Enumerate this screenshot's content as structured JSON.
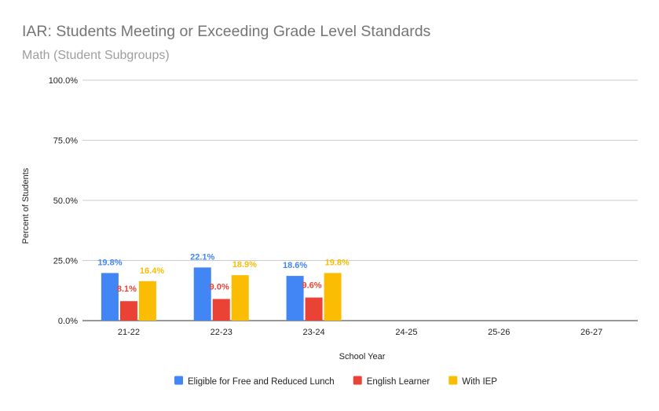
{
  "chart_data": {
    "type": "bar",
    "title": "IAR: Students Meeting or Exceeding Grade Level Standards",
    "subtitle": "Math (Student Subgroups)",
    "xlabel": "School Year",
    "ylabel": "Percent of Students",
    "categories": [
      "21-22",
      "22-23",
      "23-24",
      "24-25",
      "25-26",
      "26-27"
    ],
    "ylim": [
      0,
      100
    ],
    "yticks": [
      0,
      25,
      50,
      75,
      100
    ],
    "ytick_labels": [
      "0.0%",
      "25.0%",
      "50.0%",
      "75.0%",
      "100.0%"
    ],
    "grid": true,
    "legend_position": "bottom",
    "series": [
      {
        "name": "Eligible for Free and Reduced Lunch",
        "color": "#4285f4",
        "values": [
          19.8,
          22.1,
          18.6,
          null,
          null,
          null
        ],
        "labels": [
          "19.8%",
          "22.1%",
          "18.6%",
          "",
          "",
          ""
        ]
      },
      {
        "name": "English Learner",
        "color": "#ea4335",
        "values": [
          8.1,
          9.0,
          9.6,
          null,
          null,
          null
        ],
        "labels": [
          "8.1%",
          "9.0%",
          "9.6%",
          "",
          "",
          ""
        ]
      },
      {
        "name": "With IEP",
        "color": "#fbbc04",
        "values": [
          16.4,
          18.9,
          19.8,
          null,
          null,
          null
        ],
        "labels": [
          "16.4%",
          "18.9%",
          "19.8%",
          "",
          "",
          ""
        ]
      }
    ]
  }
}
